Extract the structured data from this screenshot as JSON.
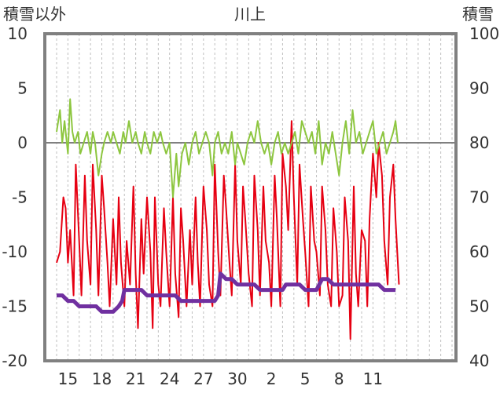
{
  "chart_data": {
    "type": "line",
    "title": "川上",
    "left_axis_label": "積雪以外",
    "right_axis_label": "積雪",
    "ylim": [
      -20,
      10
    ],
    "y_ticks": [
      10,
      5,
      0,
      -5,
      -10,
      -15,
      -20
    ],
    "y2lim": [
      40,
      100
    ],
    "y2_ticks": [
      100,
      90,
      80,
      70,
      60,
      50,
      40
    ],
    "x_range": [
      0,
      35
    ],
    "x_ticks": [
      {
        "x": 1,
        "label": "15"
      },
      {
        "x": 4,
        "label": "18"
      },
      {
        "x": 7,
        "label": "21"
      },
      {
        "x": 10,
        "label": "24"
      },
      {
        "x": 13,
        "label": "27"
      },
      {
        "x": 16,
        "label": "30"
      },
      {
        "x": 19,
        "label": "2"
      },
      {
        "x": 22,
        "label": "5"
      },
      {
        "x": 25,
        "label": "8"
      },
      {
        "x": 28,
        "label": "11"
      }
    ],
    "grid": {
      "vertical_dashed": true,
      "zero_line": true
    },
    "series": [
      {
        "color": "#e60012",
        "axis": "left",
        "x": [
          0.0,
          0.3,
          0.6,
          0.8,
          1.0,
          1.2,
          1.5,
          1.7,
          2.0,
          2.2,
          2.5,
          2.7,
          3.0,
          3.2,
          3.5,
          3.7,
          4.0,
          4.2,
          4.5,
          4.7,
          5.0,
          5.3,
          5.5,
          5.7,
          6.0,
          6.2,
          6.5,
          6.8,
          7.0,
          7.2,
          7.5,
          7.7,
          8.0,
          8.3,
          8.5,
          8.7,
          9.0,
          9.2,
          9.5,
          9.7,
          10.0,
          10.3,
          10.5,
          10.8,
          11.0,
          11.2,
          11.5,
          11.8,
          12.0,
          12.3,
          12.5,
          12.7,
          13.0,
          13.3,
          13.5,
          13.8,
          14.0,
          14.3,
          14.5,
          14.8,
          15.0,
          15.3,
          15.5,
          15.8,
          16.0,
          16.3,
          16.5,
          16.7,
          17.0,
          17.3,
          17.5,
          17.8,
          18.0,
          18.3,
          18.5,
          18.8,
          19.0,
          19.3,
          19.5,
          19.8,
          20.0,
          20.3,
          20.5,
          20.8,
          21.0,
          21.3,
          21.5,
          21.8,
          22.0,
          22.3,
          22.5,
          22.8,
          23.0,
          23.3,
          23.5,
          23.8,
          24.0,
          24.3,
          24.5,
          24.8,
          25.0,
          25.3,
          25.5,
          25.8,
          26.0,
          26.3,
          26.5,
          26.7,
          27.0,
          27.3,
          27.5,
          27.7,
          28.0,
          28.3,
          28.5,
          28.8,
          29.0,
          29.3,
          29.5,
          29.8,
          30.0,
          30.3
        ],
        "y": [
          -11,
          -10,
          -5,
          -6,
          -11,
          -8,
          -14,
          -2,
          -9,
          -14,
          -3,
          -9,
          -13,
          -2,
          -8,
          -14,
          -3,
          -6,
          -11,
          -15,
          -7,
          -13,
          -5,
          -11,
          -15,
          -9,
          -13,
          -4,
          -12,
          -17,
          -7,
          -12,
          -5,
          -10,
          -17,
          -5,
          -13,
          -15,
          -6,
          -10,
          -15,
          -5,
          -12,
          -16,
          -6,
          -9,
          -15,
          -8,
          -13,
          -5,
          -11,
          -15,
          -4,
          -8,
          -13,
          -15,
          -2,
          -10,
          -14,
          -3,
          -6,
          -11,
          -14,
          -2,
          -9,
          -13,
          -4,
          -7,
          -12,
          -15,
          -3,
          -8,
          -14,
          -4,
          -9,
          -11,
          -15,
          -3,
          -7,
          -15,
          -1,
          -4,
          -8,
          2,
          -5,
          -13,
          -2,
          -7,
          -10,
          -15,
          -4,
          -9,
          -10,
          -14,
          -4,
          -8,
          -13,
          -15,
          -6,
          -10,
          -15,
          -14,
          -5,
          -9,
          -18,
          -4,
          -12,
          -15,
          -8,
          -9,
          -15,
          -7,
          -1,
          -5,
          0,
          -3,
          -9,
          -13,
          -5,
          -2,
          -7,
          -13
        ]
      },
      {
        "color": "#8dc63f",
        "axis": "left",
        "x": [
          0.0,
          0.3,
          0.5,
          0.7,
          1.0,
          1.2,
          1.4,
          1.6,
          1.9,
          2.1,
          2.4,
          2.7,
          3.0,
          3.2,
          3.4,
          3.7,
          4.0,
          4.2,
          4.5,
          4.8,
          5.0,
          5.3,
          5.6,
          5.9,
          6.1,
          6.4,
          6.7,
          7.0,
          7.2,
          7.5,
          7.8,
          8.0,
          8.3,
          8.6,
          8.9,
          9.2,
          9.4,
          9.7,
          10.0,
          10.3,
          10.6,
          10.8,
          11.1,
          11.4,
          11.7,
          12.0,
          12.3,
          12.6,
          12.9,
          13.2,
          13.5,
          13.8,
          14.0,
          14.3,
          14.6,
          14.9,
          15.2,
          15.5,
          15.8,
          16.0,
          16.3,
          16.6,
          16.9,
          17.2,
          17.5,
          17.8,
          18.1,
          18.4,
          18.7,
          19.0,
          19.3,
          19.6,
          19.9,
          20.2,
          20.5,
          20.8,
          21.1,
          21.4,
          21.7,
          22.0,
          22.3,
          22.6,
          22.9,
          23.2,
          23.5,
          23.8,
          24.1,
          24.4,
          24.7,
          25.0,
          25.3,
          25.6,
          25.9,
          26.2,
          26.5,
          26.8,
          27.1,
          27.4,
          27.7,
          28.0,
          28.3,
          28.6,
          28.9,
          29.2,
          29.5,
          29.8,
          30.0,
          30.2
        ],
        "y": [
          1,
          3,
          0,
          2,
          -1,
          4,
          1,
          0,
          1,
          -1,
          0,
          1,
          -1,
          1,
          0,
          -3,
          -1,
          0,
          1,
          0,
          1,
          0,
          -1,
          1,
          0,
          2,
          0,
          1,
          0,
          -1,
          1,
          0,
          -1,
          1,
          0,
          1,
          0,
          -1,
          0,
          -5,
          -1,
          -4,
          -1,
          0,
          -2,
          0,
          1,
          -1,
          0,
          1,
          0,
          -3,
          0,
          1,
          -1,
          0,
          -1,
          1,
          -2,
          0,
          -1,
          -2,
          0,
          1,
          0,
          2,
          0,
          -1,
          0,
          -2,
          0,
          1,
          -1,
          0,
          -1,
          0,
          1,
          -1,
          2,
          1,
          0,
          1,
          -1,
          2,
          -2,
          0,
          -1,
          1,
          -1,
          -3,
          0,
          2,
          -1,
          3,
          0,
          1,
          -1,
          0,
          1,
          2,
          -1,
          0,
          1,
          -1,
          0,
          1,
          2,
          0
        ]
      },
      {
        "color": "#7030a0",
        "axis": "right",
        "x": [
          0.0,
          0.5,
          1.0,
          1.5,
          2.0,
          2.5,
          3.0,
          3.5,
          4.0,
          4.5,
          5.0,
          5.5,
          5.8,
          6.0,
          6.5,
          7.0,
          7.5,
          8.0,
          8.5,
          9.0,
          9.5,
          10.0,
          10.5,
          11.0,
          11.5,
          12.0,
          12.5,
          13.0,
          13.5,
          14.0,
          14.3,
          14.5,
          15.0,
          15.5,
          16.0,
          16.5,
          17.0,
          17.5,
          18.0,
          18.5,
          19.0,
          19.5,
          20.0,
          20.3,
          20.5,
          21.0,
          21.5,
          22.0,
          22.5,
          23.0,
          23.5,
          24.0,
          24.5,
          25.0,
          25.5,
          26.0,
          26.5,
          27.0,
          27.5,
          28.0,
          28.5,
          29.0,
          29.5,
          30.0
        ],
        "y": [
          52,
          52,
          51,
          51,
          50,
          50,
          50,
          50,
          49,
          49,
          49,
          50,
          51,
          53,
          53,
          53,
          53,
          52,
          52,
          52,
          52,
          52,
          52,
          51,
          51,
          51,
          51,
          51,
          51,
          51,
          52,
          56,
          55,
          55,
          54,
          54,
          54,
          54,
          53,
          53,
          53,
          53,
          53,
          54,
          54,
          54,
          54,
          53,
          53,
          53,
          55,
          55,
          54,
          54,
          54,
          54,
          54,
          54,
          54,
          54,
          54,
          53,
          53,
          53
        ]
      }
    ]
  }
}
